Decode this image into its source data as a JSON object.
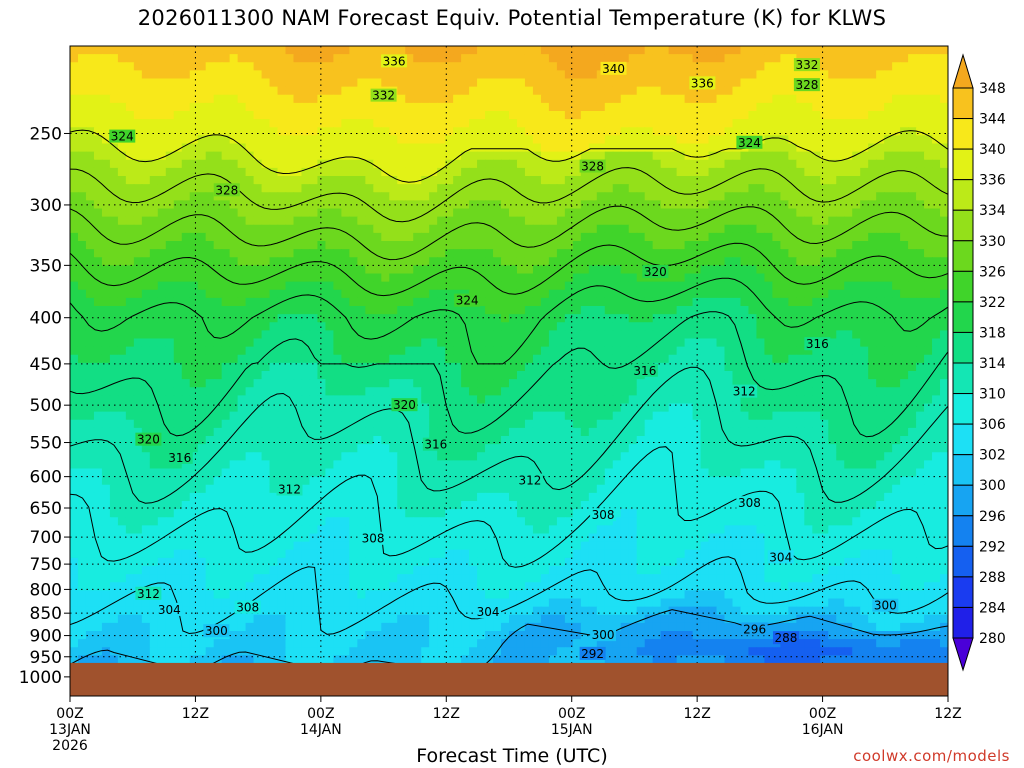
{
  "chart_data": {
    "type": "heatmap",
    "title": "2026011300 NAM Forecast Equiv. Potential Temperature (K) for KLWS",
    "xlabel": "Forecast Time (UTC)",
    "ylabel": "",
    "credit": "coolwx.com/models",
    "y_axis": {
      "units": "hPa",
      "scale": "log",
      "ticks": [
        250,
        300,
        350,
        400,
        450,
        500,
        550,
        600,
        650,
        700,
        750,
        800,
        850,
        900,
        950,
        1000
      ],
      "range": [
        1050,
        200
      ]
    },
    "x_axis": {
      "range_hours": [
        0,
        84
      ],
      "ticks": [
        {
          "hour": 0,
          "label": "00Z",
          "sub": "13JAN",
          "sub2": "2026"
        },
        {
          "hour": 12,
          "label": "12Z",
          "sub": "",
          "sub2": ""
        },
        {
          "hour": 24,
          "label": "00Z",
          "sub": "14JAN",
          "sub2": ""
        },
        {
          "hour": 36,
          "label": "12Z",
          "sub": "",
          "sub2": ""
        },
        {
          "hour": 48,
          "label": "00Z",
          "sub": "15JAN",
          "sub2": ""
        },
        {
          "hour": 60,
          "label": "12Z",
          "sub": "",
          "sub2": ""
        },
        {
          "hour": 72,
          "label": "00Z",
          "sub": "16JAN",
          "sub2": ""
        },
        {
          "hour": 84,
          "label": "12Z",
          "sub": "",
          "sub2": ""
        }
      ]
    },
    "colorbar": {
      "levels": [
        280,
        284,
        288,
        292,
        296,
        300,
        302,
        306,
        310,
        314,
        318,
        322,
        326,
        330,
        334,
        336,
        340,
        344,
        348
      ],
      "colors": [
        "#4a00d8",
        "#2020e8",
        "#1a3cf0",
        "#1560f0",
        "#1482f0",
        "#17a4f2",
        "#1ac4f4",
        "#1de0f5",
        "#18ece0",
        "#14e6b4",
        "#12de84",
        "#22d64c",
        "#40d42a",
        "#6cd81e",
        "#94e01a",
        "#bcea18",
        "#e2f216",
        "#f8e81a",
        "#f8c21e",
        "#f4a81e"
      ]
    },
    "ground": {
      "color": "#a0522d",
      "top_hpa": 965
    },
    "contour_labels": [
      {
        "value": "336",
        "hour": 31,
        "hpa": 208
      },
      {
        "value": "340",
        "hour": 52,
        "hpa": 212
      },
      {
        "value": "332",
        "hour": 70.5,
        "hpa": 210
      },
      {
        "value": "328",
        "hour": 70.5,
        "hpa": 221
      },
      {
        "value": "336",
        "hour": 60.5,
        "hpa": 220
      },
      {
        "value": "332",
        "hour": 30,
        "hpa": 227
      },
      {
        "value": "324",
        "hour": 5,
        "hpa": 252
      },
      {
        "value": "324",
        "hour": 65,
        "hpa": 256
      },
      {
        "value": "328",
        "hour": 50,
        "hpa": 272
      },
      {
        "value": "328",
        "hour": 15,
        "hpa": 289
      },
      {
        "value": "320",
        "hour": 56,
        "hpa": 356
      },
      {
        "value": "324",
        "hour": 38,
        "hpa": 383
      },
      {
        "value": "316",
        "hour": 71.5,
        "hpa": 428
      },
      {
        "value": "316",
        "hour": 55,
        "hpa": 458
      },
      {
        "value": "312",
        "hour": 64.5,
        "hpa": 483
      },
      {
        "value": "320",
        "hour": 32,
        "hpa": 500
      },
      {
        "value": "320",
        "hour": 7.5,
        "hpa": 546
      },
      {
        "value": "316",
        "hour": 35,
        "hpa": 553
      },
      {
        "value": "316",
        "hour": 10.5,
        "hpa": 572
      },
      {
        "value": "312",
        "hour": 44,
        "hpa": 606
      },
      {
        "value": "312",
        "hour": 21,
        "hpa": 620
      },
      {
        "value": "308",
        "hour": 65,
        "hpa": 642
      },
      {
        "value": "308",
        "hour": 51,
        "hpa": 662
      },
      {
        "value": "308",
        "hour": 29,
        "hpa": 703
      },
      {
        "value": "304",
        "hour": 68,
        "hpa": 737
      },
      {
        "value": "312",
        "hour": 7.5,
        "hpa": 809
      },
      {
        "value": "308",
        "hour": 17,
        "hpa": 838
      },
      {
        "value": "304",
        "hour": 9.5,
        "hpa": 843
      },
      {
        "value": "300",
        "hour": 78,
        "hpa": 834
      },
      {
        "value": "304",
        "hour": 40,
        "hpa": 848
      },
      {
        "value": "300",
        "hour": 14,
        "hpa": 890
      },
      {
        "value": "296",
        "hour": 65.5,
        "hpa": 886
      },
      {
        "value": "300",
        "hour": 51,
        "hpa": 899
      },
      {
        "value": "288",
        "hour": 68.5,
        "hpa": 906
      },
      {
        "value": "292",
        "hour": 50,
        "hpa": 943
      }
    ]
  }
}
